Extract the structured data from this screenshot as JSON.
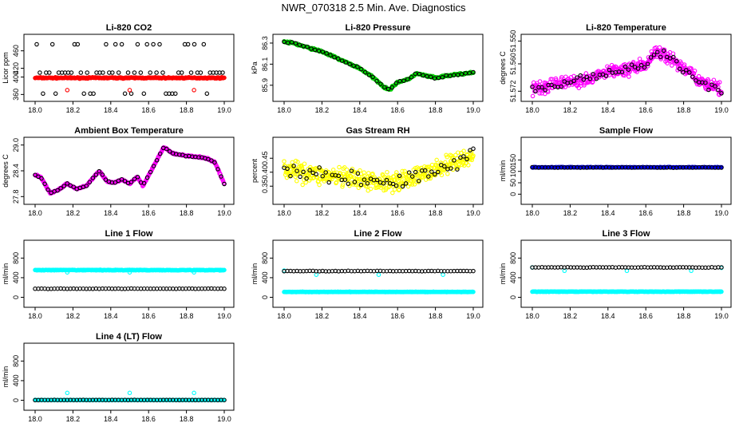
{
  "figure_title": "NWR_070318  2.5 Min. Ave. Diagnostics",
  "chart_data": [
    {
      "type": "scatter",
      "title": "Li-820 CO2",
      "ylabel": "Licor ppm",
      "xlim": [
        18.0,
        19.0
      ],
      "ylim": [
        357,
        485
      ],
      "x_ticks": [
        "18.0",
        "18.2",
        "18.4",
        "18.6",
        "18.8",
        "19.0"
      ],
      "y_ticks": [
        {
          "v": 360,
          "label": "360"
        },
        {
          "v": 400,
          "label": "400"
        },
        {
          "v": 420,
          "label": "420"
        },
        {
          "v": 460,
          "label": "460"
        }
      ],
      "series": [
        {
          "color": "#ff0000",
          "pattern": "flat",
          "level": 398,
          "noise": 1.2,
          "count": 300
        },
        {
          "color": "#000000",
          "pattern": "spikes",
          "levels": [
            410,
            475,
            362
          ],
          "count": 60
        },
        {
          "color": "#ff0000",
          "pattern": "points",
          "x": [
            18.17,
            18.5,
            18.84
          ],
          "y": [
            370,
            370,
            370
          ]
        }
      ]
    },
    {
      "type": "scatter",
      "title": "Li-820 Pressure",
      "ylabel": "kPa",
      "xlim": [
        18.0,
        19.0
      ],
      "ylim": [
        85.8,
        86.33
      ],
      "x_ticks": [
        "18.0",
        "18.2",
        "18.4",
        "18.6",
        "18.8",
        "19.0"
      ],
      "y_ticks": [
        {
          "v": 85.9,
          "label": "85.9"
        },
        {
          "v": 86.1,
          "label": "86.1"
        },
        {
          "v": 86.3,
          "label": "86.3"
        }
      ],
      "series": [
        {
          "color": "#00cc00",
          "pattern": "curve",
          "x": [
            18.0,
            18.05,
            18.1,
            18.2,
            18.3,
            18.4,
            18.45,
            18.5,
            18.53,
            18.56,
            18.6,
            18.65,
            18.7,
            18.75,
            18.8,
            18.9,
            19.0
          ],
          "y": [
            86.31,
            86.3,
            86.27,
            86.22,
            86.14,
            86.06,
            86.0,
            85.93,
            85.88,
            85.86,
            85.93,
            85.95,
            86.01,
            85.99,
            85.97,
            86.0,
            86.02
          ],
          "noise": 0.008,
          "count": 300
        },
        {
          "color": "#000000",
          "pattern": "curve",
          "x": [
            18.0,
            18.05,
            18.1,
            18.2,
            18.3,
            18.4,
            18.45,
            18.5,
            18.53,
            18.56,
            18.6,
            18.65,
            18.7,
            18.75,
            18.8,
            18.9,
            19.0
          ],
          "y": [
            86.31,
            86.3,
            86.27,
            86.22,
            86.14,
            86.06,
            86.0,
            85.93,
            85.88,
            85.86,
            85.93,
            85.95,
            86.01,
            85.99,
            85.97,
            86.0,
            86.02
          ],
          "noise": 0.006,
          "count": 50
        }
      ]
    },
    {
      "type": "scatter",
      "title": "Li-820 Temperature",
      "ylabel": "degrees C",
      "xlim": [
        18.0,
        19.0
      ],
      "ylim": [
        51.574,
        51.5495
      ],
      "x_ticks": [
        "18.0",
        "18.2",
        "18.4",
        "18.6",
        "18.8",
        "19.0"
      ],
      "y_ticks": [
        {
          "v": 51.572,
          "label": "51.572"
        },
        {
          "v": 51.56,
          "label": "51.560"
        },
        {
          "v": 51.55,
          "label": "51.550"
        }
      ],
      "series": [
        {
          "color": "#ff00ff",
          "pattern": "curve",
          "x": [
            18.0,
            18.1,
            18.2,
            18.3,
            18.4,
            18.5,
            18.6,
            18.65,
            18.7,
            18.8,
            18.9,
            19.0
          ],
          "y": [
            51.571,
            51.5695,
            51.568,
            51.566,
            51.564,
            51.562,
            51.5605,
            51.555,
            51.556,
            51.562,
            51.5685,
            51.5715
          ],
          "noise": 0.0025,
          "count": 420
        },
        {
          "color": "#000000",
          "pattern": "curve",
          "x": [
            18.0,
            18.1,
            18.2,
            18.3,
            18.4,
            18.5,
            18.6,
            18.65,
            18.7,
            18.8,
            18.9,
            19.0
          ],
          "y": [
            51.571,
            51.5695,
            51.568,
            51.566,
            51.564,
            51.562,
            51.5605,
            51.555,
            51.556,
            51.562,
            51.5685,
            51.5715
          ],
          "noise": 0.0015,
          "count": 60
        }
      ]
    },
    {
      "type": "scatter",
      "title": "Ambient Box Temperature",
      "ylabel": "degrees C",
      "xlim": [
        18.0,
        19.0
      ],
      "ylim": [
        27.75,
        29.05
      ],
      "x_ticks": [
        "18.0",
        "18.2",
        "18.4",
        "18.6",
        "18.8",
        "19.0"
      ],
      "y_ticks": [
        {
          "v": 27.8,
          "label": "27.8"
        },
        {
          "v": 28.4,
          "label": "28.4"
        },
        {
          "v": 29.0,
          "label": "29.0"
        }
      ],
      "series": [
        {
          "color": "#ff00ff",
          "pattern": "curve",
          "x": [
            18.0,
            18.03,
            18.08,
            18.12,
            18.17,
            18.22,
            18.27,
            18.34,
            18.38,
            18.42,
            18.46,
            18.5,
            18.54,
            18.57,
            18.62,
            18.68,
            18.73,
            18.8,
            18.9,
            18.95,
            19.0
          ],
          "y": [
            28.3,
            28.25,
            27.88,
            27.95,
            28.1,
            27.98,
            28.05,
            28.4,
            28.15,
            28.12,
            28.2,
            28.1,
            28.27,
            28.05,
            28.45,
            28.95,
            28.8,
            28.75,
            28.7,
            28.6,
            28.1
          ],
          "noise": 0.015,
          "count": 400
        },
        {
          "color": "#000000",
          "pattern": "curve",
          "x": [
            18.0,
            18.03,
            18.08,
            18.12,
            18.17,
            18.22,
            18.27,
            18.34,
            18.38,
            18.42,
            18.46,
            18.5,
            18.54,
            18.57,
            18.62,
            18.68,
            18.73,
            18.8,
            18.9,
            18.95,
            19.0
          ],
          "y": [
            28.3,
            28.25,
            27.88,
            27.95,
            28.1,
            27.98,
            28.05,
            28.4,
            28.15,
            28.12,
            28.2,
            28.1,
            28.27,
            28.05,
            28.45,
            28.95,
            28.8,
            28.75,
            28.7,
            28.6,
            28.1
          ],
          "noise": 0.01,
          "count": 60
        }
      ]
    },
    {
      "type": "scatter",
      "title": "Gas Stream RH",
      "ylabel": "percent",
      "xlim": [
        18.0,
        19.0
      ],
      "ylim": [
        0.305,
        0.505
      ],
      "x_ticks": [
        "18.0",
        "18.2",
        "18.4",
        "18.6",
        "18.8",
        "19.0"
      ],
      "y_ticks": [
        {
          "v": 0.35,
          "label": "0.35"
        },
        {
          "v": 0.4,
          "label": "0.40"
        },
        {
          "v": 0.45,
          "label": "0.45"
        }
      ],
      "series": [
        {
          "color": "#ffff00",
          "pattern": "curve",
          "x": [
            18.0,
            18.2,
            18.4,
            18.5,
            18.6,
            18.7,
            18.8,
            18.9,
            19.0
          ],
          "y": [
            0.41,
            0.39,
            0.37,
            0.365,
            0.37,
            0.385,
            0.41,
            0.435,
            0.46
          ],
          "noise": 0.03,
          "count": 420
        },
        {
          "color": "#000000",
          "pattern": "curve",
          "x": [
            18.0,
            18.2,
            18.4,
            18.5,
            18.6,
            18.7,
            18.8,
            18.9,
            19.0
          ],
          "y": [
            0.41,
            0.39,
            0.37,
            0.365,
            0.37,
            0.385,
            0.41,
            0.435,
            0.46
          ],
          "noise": 0.025,
          "count": 60
        }
      ]
    },
    {
      "type": "scatter",
      "title": "Sample Flow",
      "ylabel": "ml/min",
      "xlim": [
        18.0,
        19.0
      ],
      "ylim": [
        -20,
        225
      ],
      "x_ticks": [
        "18.0",
        "18.2",
        "18.4",
        "18.6",
        "18.8",
        "19.0"
      ],
      "y_ticks": [
        {
          "v": 0,
          "label": "0"
        },
        {
          "v": 50,
          "label": "50"
        },
        {
          "v": 100,
          "label": "100"
        },
        {
          "v": 150,
          "label": "150"
        }
      ],
      "series": [
        {
          "color": "#0000ff",
          "pattern": "flat",
          "level": 118,
          "noise": 1,
          "count": 300
        },
        {
          "color": "#000000",
          "pattern": "flat",
          "level": 117,
          "noise": 1,
          "count": 60
        }
      ]
    },
    {
      "type": "scatter",
      "title": "Line 1 Flow",
      "ylabel": "ml/min",
      "xlim": [
        18.0,
        19.0
      ],
      "ylim": [
        -90,
        1050
      ],
      "x_ticks": [
        "18.0",
        "18.2",
        "18.4",
        "18.6",
        "18.8",
        "19.0"
      ],
      "y_ticks": [
        {
          "v": 0,
          "label": "0"
        },
        {
          "v": 400,
          "label": "400"
        },
        {
          "v": 800,
          "label": "800"
        }
      ],
      "series": [
        {
          "color": "#00ffff",
          "pattern": "flat",
          "level": 555,
          "noise": 6,
          "count": 300
        },
        {
          "color": "#00ffff",
          "pattern": "points",
          "x": [
            18.17,
            18.5,
            18.84
          ],
          "y": [
            510,
            510,
            510
          ]
        },
        {
          "color": "#000000",
          "pattern": "flat",
          "level": 175,
          "noise": 3,
          "count": 60
        }
      ]
    },
    {
      "type": "scatter",
      "title": "Line 2 Flow",
      "ylabel": "ml/min",
      "xlim": [
        18.0,
        19.0
      ],
      "ylim": [
        -90,
        1050
      ],
      "x_ticks": [
        "18.0",
        "18.2",
        "18.4",
        "18.6",
        "18.8",
        "19.0"
      ],
      "y_ticks": [
        {
          "v": 0,
          "label": "0"
        },
        {
          "v": 400,
          "label": "400"
        },
        {
          "v": 800,
          "label": "800"
        }
      ],
      "series": [
        {
          "color": "#00ffff",
          "pattern": "flat",
          "level": 110,
          "noise": 4,
          "count": 300
        },
        {
          "color": "#00ffff",
          "pattern": "points",
          "x": [
            18.0,
            18.17,
            18.5,
            18.84
          ],
          "y": [
            545,
            460,
            460,
            460
          ]
        },
        {
          "color": "#000000",
          "pattern": "flat",
          "level": 535,
          "noise": 4,
          "count": 60
        }
      ]
    },
    {
      "type": "scatter",
      "title": "Line 3 Flow",
      "ylabel": "ml/min",
      "xlim": [
        18.0,
        19.0
      ],
      "ylim": [
        -90,
        1050
      ],
      "x_ticks": [
        "18.0",
        "18.2",
        "18.4",
        "18.6",
        "18.8",
        "19.0"
      ],
      "y_ticks": [
        {
          "v": 0,
          "label": "0"
        },
        {
          "v": 400,
          "label": "400"
        },
        {
          "v": 800,
          "label": "800"
        }
      ],
      "series": [
        {
          "color": "#00ffff",
          "pattern": "flat",
          "level": 115,
          "noise": 4,
          "count": 300
        },
        {
          "color": "#00ffff",
          "pattern": "points",
          "x": [
            18.0,
            18.17,
            18.5,
            18.84,
            19.0
          ],
          "y": [
            610,
            540,
            540,
            540,
            600
          ]
        },
        {
          "color": "#000000",
          "pattern": "flat",
          "level": 610,
          "noise": 4,
          "count": 60
        }
      ]
    },
    {
      "type": "scatter",
      "title": "Line 4 (LT) Flow",
      "ylabel": "ml/min",
      "xlim": [
        18.0,
        19.0
      ],
      "ylim": [
        -90,
        1050
      ],
      "x_ticks": [
        "18.0",
        "18.2",
        "18.4",
        "18.6",
        "18.8",
        "19.0"
      ],
      "y_ticks": [
        {
          "v": 0,
          "label": "0"
        },
        {
          "v": 400,
          "label": "400"
        },
        {
          "v": 800,
          "label": "800"
        }
      ],
      "series": [
        {
          "color": "#00ffff",
          "pattern": "flat",
          "level": 5,
          "noise": 2,
          "count": 300
        },
        {
          "color": "#00ffff",
          "pattern": "points",
          "x": [
            18.17,
            18.5,
            18.84
          ],
          "y": [
            150,
            150,
            150
          ]
        },
        {
          "color": "#000000",
          "pattern": "flat",
          "level": 5,
          "noise": 2,
          "count": 60
        }
      ]
    }
  ]
}
